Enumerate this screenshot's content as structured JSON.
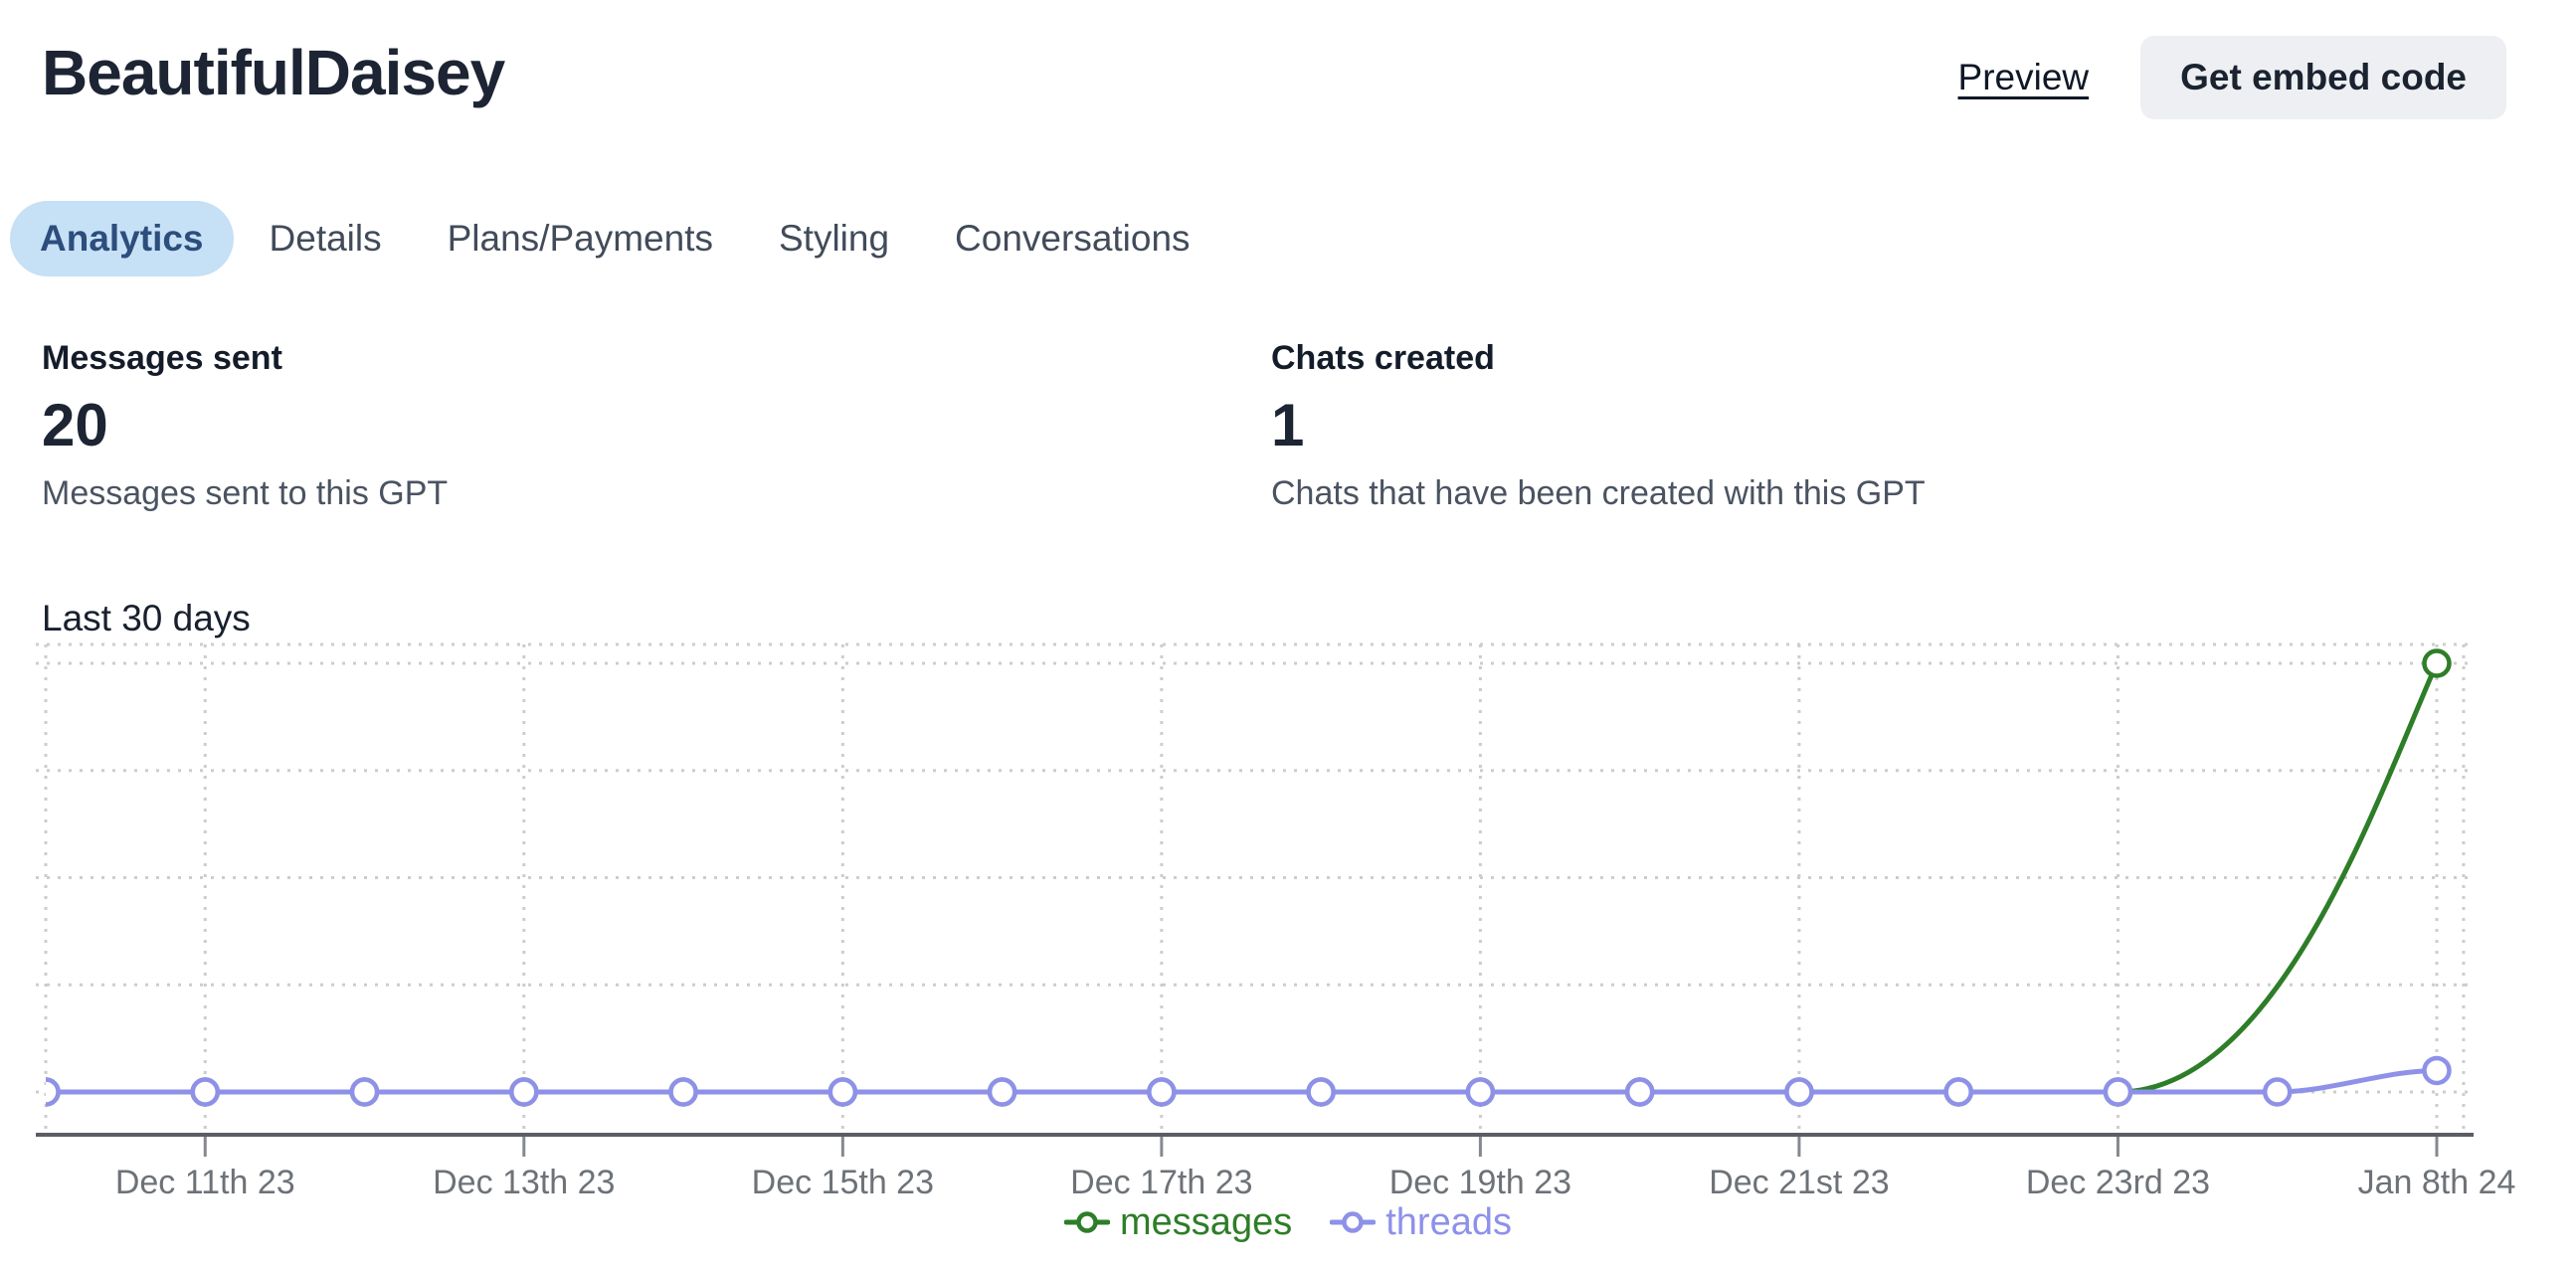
{
  "header": {
    "title": "BeautifulDaisey",
    "preview_label": "Preview",
    "embed_button_label": "Get embed code"
  },
  "tabs": [
    {
      "label": "Analytics",
      "active": true
    },
    {
      "label": "Details",
      "active": false
    },
    {
      "label": "Plans/Payments",
      "active": false
    },
    {
      "label": "Styling",
      "active": false
    },
    {
      "label": "Conversations",
      "active": false
    }
  ],
  "stats": [
    {
      "label": "Messages sent",
      "value": "20",
      "description": "Messages sent to this GPT"
    },
    {
      "label": "Chats created",
      "value": "1",
      "description": "Chats that have been created with this GPT"
    }
  ],
  "chart_data": {
    "type": "line",
    "title": "Last 30 days",
    "x_tick_labels": [
      "Dec 11th 23",
      "Dec 13th 23",
      "Dec 15th 23",
      "Dec 17th 23",
      "Dec 19th 23",
      "Dec 21st 23",
      "Dec 23rd 23",
      "Jan 8th 24"
    ],
    "labeled_point_indices": [
      1,
      3,
      5,
      7,
      9,
      11,
      13,
      15
    ],
    "num_points": 16,
    "ylim": [
      0,
      20
    ],
    "y_gridlines": 5,
    "grid_style": "dotted",
    "legend_position": "bottom",
    "series": [
      {
        "name": "messages",
        "color": "#2e7d28",
        "values": [
          0,
          0,
          0,
          0,
          0,
          0,
          0,
          0,
          0,
          0,
          0,
          0,
          0,
          0,
          null,
          20
        ]
      },
      {
        "name": "threads",
        "color": "#8e91e8",
        "values": [
          0,
          0,
          0,
          0,
          0,
          0,
          0,
          0,
          0,
          0,
          0,
          0,
          0,
          0,
          0,
          1
        ]
      }
    ]
  },
  "colors": {
    "active_tab_bg": "#c6e0f6",
    "active_tab_text": "#2d4e7c",
    "messages_green": "#2e7d28",
    "threads_purple": "#8e91e8",
    "grid_gray": "#cdcdcd",
    "axis_gray": "#5a5e64",
    "tick_label_gray": "#6d7278",
    "button_bg": "#edeff2"
  }
}
